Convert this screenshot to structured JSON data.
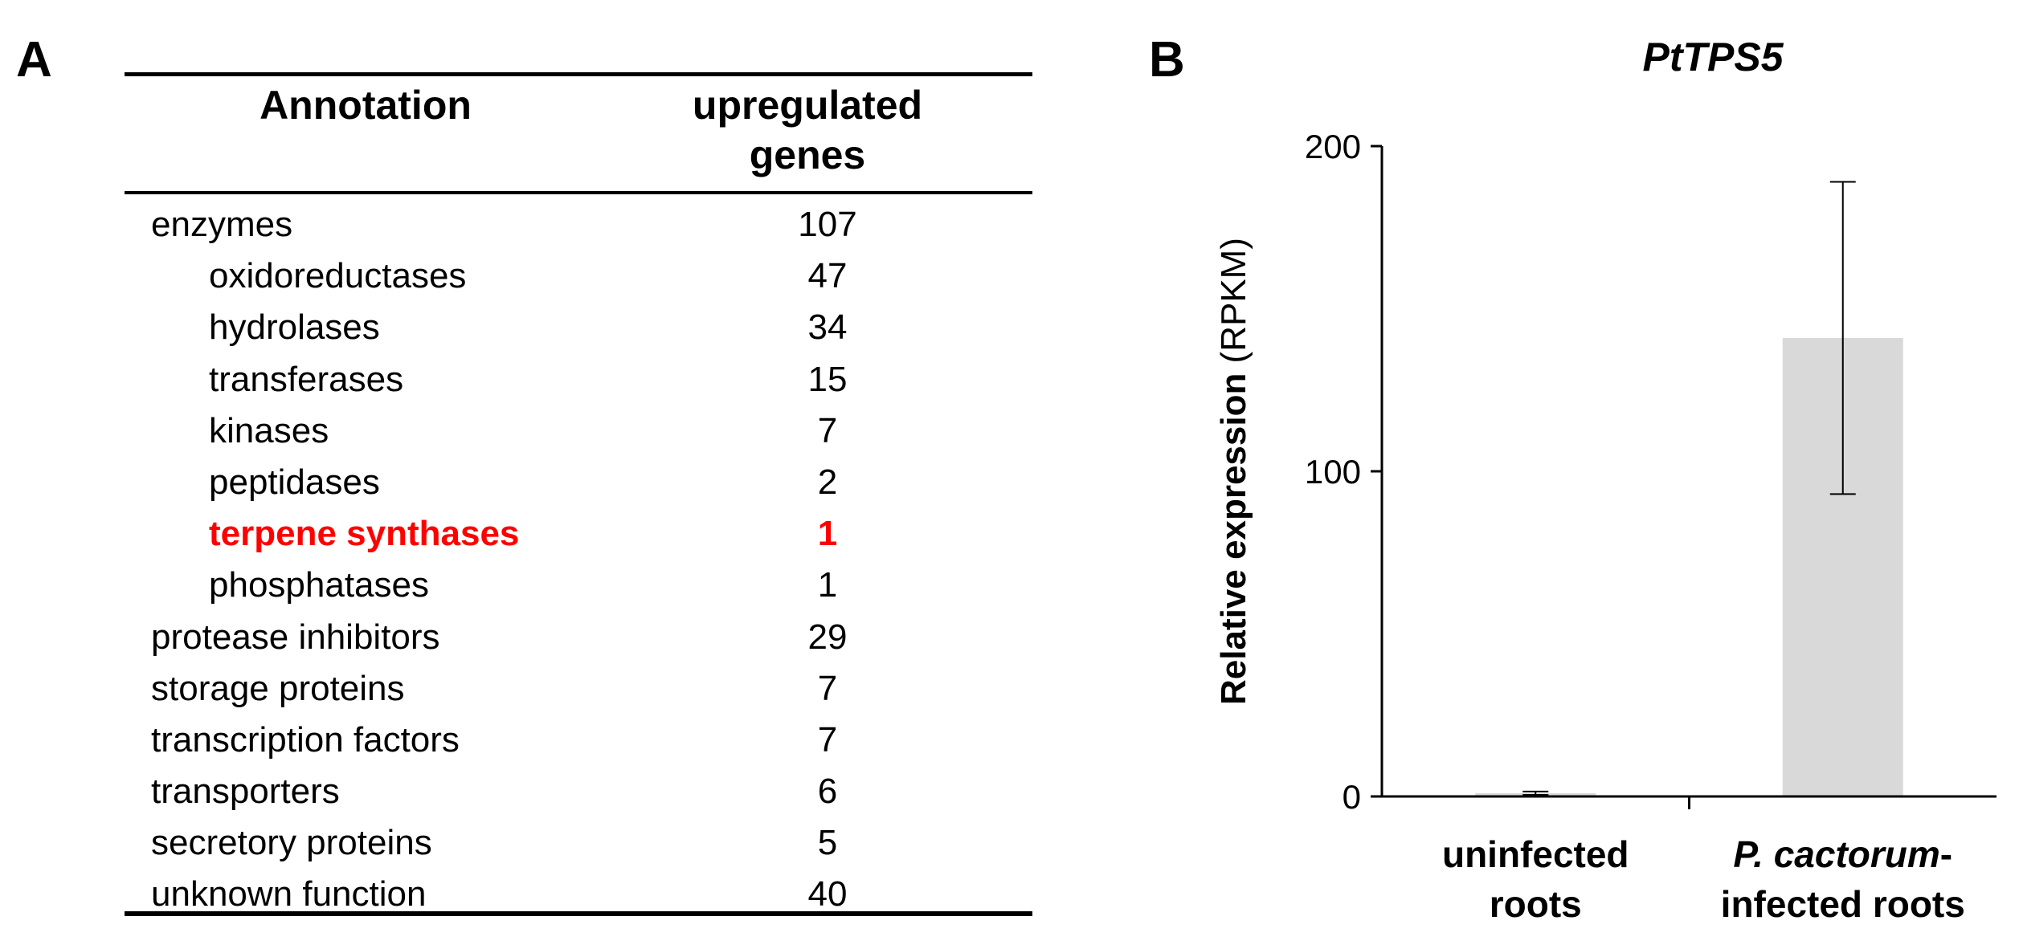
{
  "panel_a": {
    "label": "A",
    "header": {
      "annotation": "Annotation",
      "count_line1": "upregulated",
      "count_line2": "genes"
    },
    "rows": [
      {
        "name": "enzymes",
        "count": "107",
        "indent": false,
        "highlight": false
      },
      {
        "name": "oxidoreductases",
        "count": "47",
        "indent": true,
        "highlight": false
      },
      {
        "name": "hydrolases",
        "count": "34",
        "indent": true,
        "highlight": false
      },
      {
        "name": "transferases",
        "count": "15",
        "indent": true,
        "highlight": false
      },
      {
        "name": "kinases",
        "count": "7",
        "indent": true,
        "highlight": false
      },
      {
        "name": "peptidases",
        "count": "2",
        "indent": true,
        "highlight": false
      },
      {
        "name": "terpene synthases",
        "count": "1",
        "indent": true,
        "highlight": true
      },
      {
        "name": "phosphatases",
        "count": "1",
        "indent": true,
        "highlight": false
      },
      {
        "name": "protease inhibitors",
        "count": "29",
        "indent": false,
        "highlight": false
      },
      {
        "name": "storage proteins",
        "count": "7",
        "indent": false,
        "highlight": false
      },
      {
        "name": "transcription factors",
        "count": "7",
        "indent": false,
        "highlight": false
      },
      {
        "name": "transporters",
        "count": "6",
        "indent": false,
        "highlight": false
      },
      {
        "name": "secretory proteins",
        "count": "5",
        "indent": false,
        "highlight": false
      },
      {
        "name": "unknown function",
        "count": "40",
        "indent": false,
        "highlight": false
      }
    ],
    "highlight_color": "#ff0000"
  },
  "panel_b": {
    "label": "B"
  },
  "chart_data": {
    "type": "bar",
    "title": "PtTPS5",
    "ylabel_bold": "Relative expression",
    "ylabel_unit": "(RPKM)",
    "xlabel": "",
    "ylim": [
      0,
      200
    ],
    "yticks": [
      0,
      100,
      200
    ],
    "categories": [
      {
        "line1": "uninfected",
        "line1_italic": "",
        "line2": "roots"
      },
      {
        "line1": "-",
        "line1_italic": "P. cactorum",
        "line2": "infected roots"
      }
    ],
    "values": [
      1,
      141
    ],
    "error": [
      {
        "low": 0.5,
        "high": 1.5
      },
      {
        "low": 93,
        "high": 189
      }
    ],
    "bar_color": "#d9d9d9",
    "grid": false
  }
}
